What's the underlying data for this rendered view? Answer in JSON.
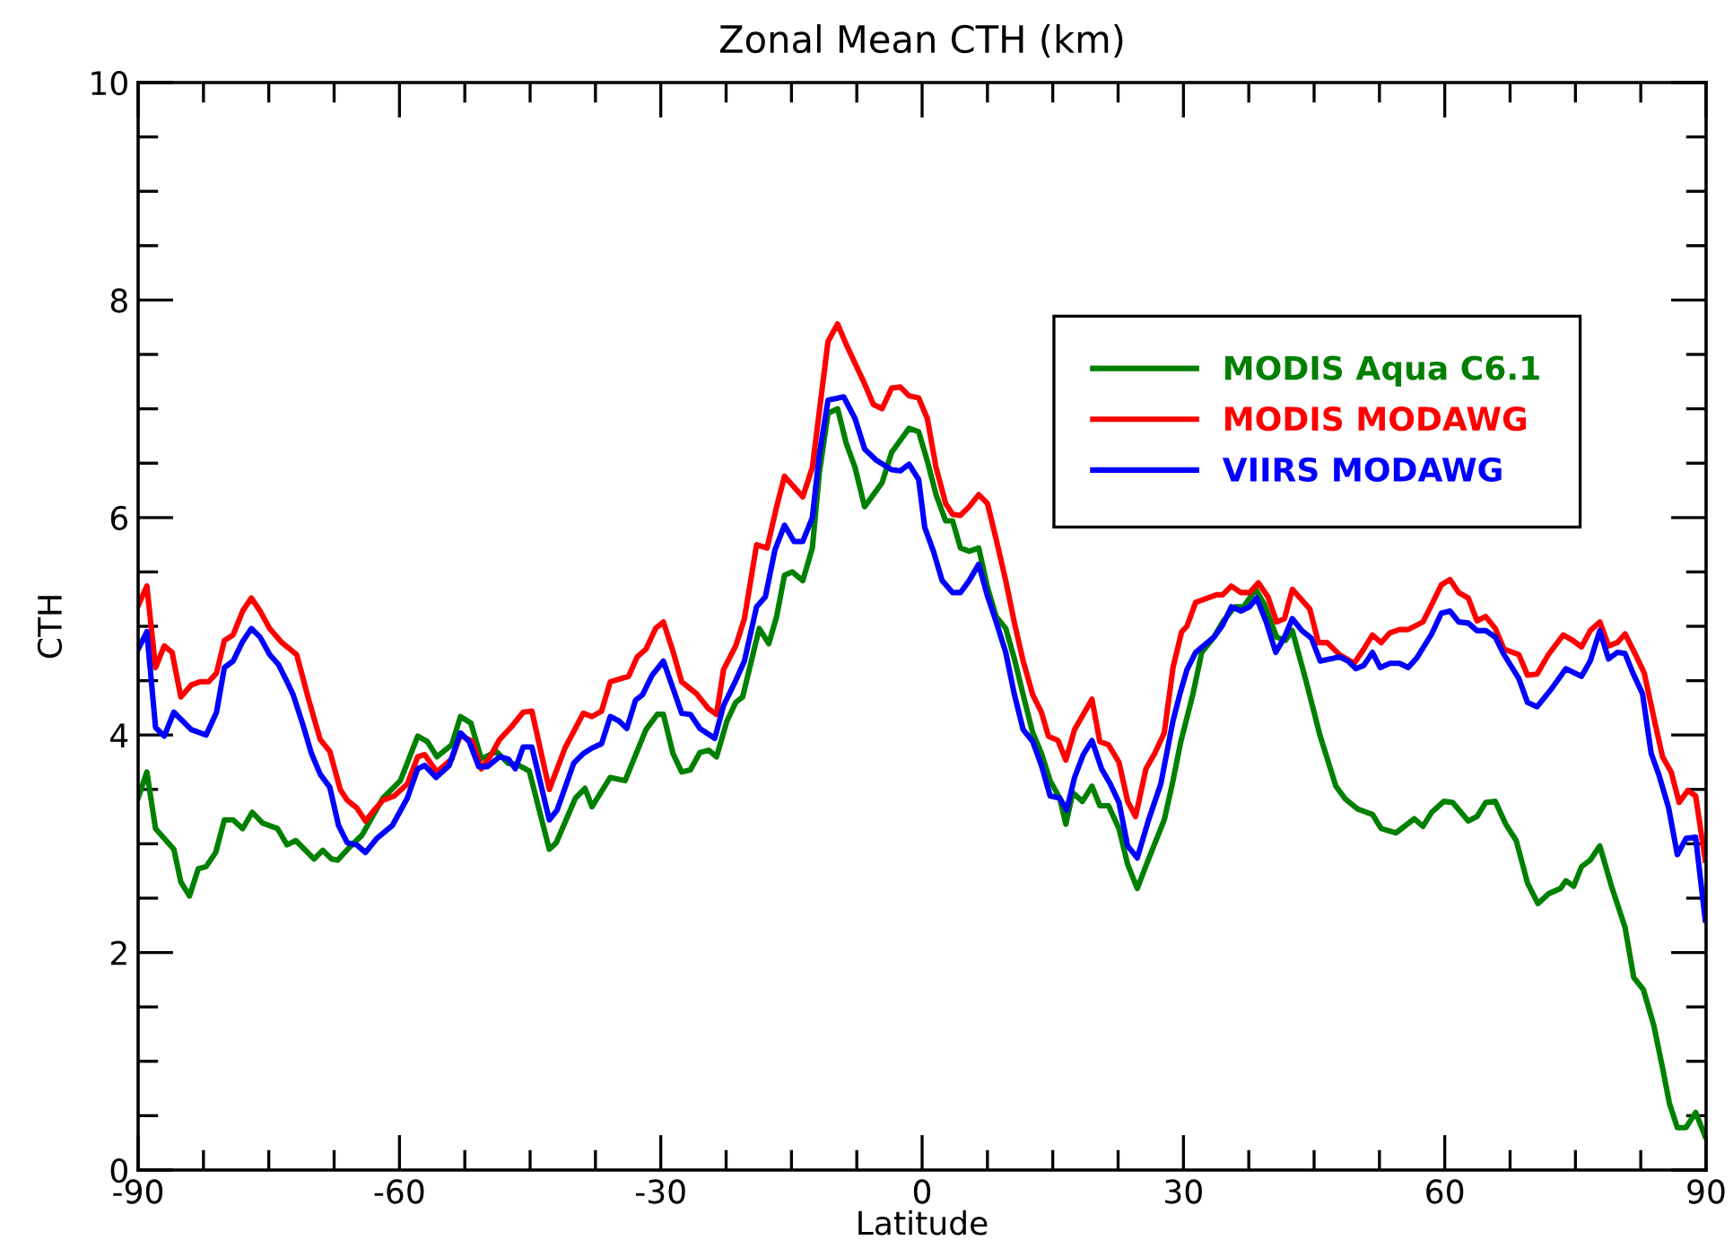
{
  "chart_data": {
    "type": "line",
    "title": "Zonal Mean CTH (km)",
    "xlabel": "Latitude",
    "ylabel": "CTH",
    "xlim": [
      -90,
      90
    ],
    "ylim": [
      0,
      10
    ],
    "xticks": [
      -90,
      -60,
      -30,
      0,
      30,
      60,
      90
    ],
    "yticks": [
      0,
      2,
      4,
      6,
      8,
      10
    ],
    "grid": false,
    "legend": "top right",
    "line_style": "solid",
    "marker": "none",
    "series": [
      {
        "name": "MODIS Aqua C6.1",
        "color": "#008000",
        "x": [
          -90.0,
          -89.0,
          -88.0,
          -85.9,
          -85.1,
          -84.1,
          -83.1,
          -82.2,
          -81.1,
          -80.1,
          -79.1,
          -78.0,
          -76.9,
          -75.7,
          -74.0,
          -72.9,
          -71.9,
          -69.8,
          -68.8,
          -67.8,
          -67.1,
          -65.7,
          -64.3,
          -61.9,
          -59.9,
          -57.9,
          -56.8,
          -55.7,
          -54.0,
          -53.0,
          -51.8,
          -50.6,
          -48.9,
          -47.5,
          -46.5,
          -45.1,
          -42.8,
          -42.0,
          -39.8,
          -38.7,
          -37.9,
          -35.8,
          -34.1,
          -31.7,
          -30.4,
          -29.7,
          -28.6,
          -27.6,
          -26.6,
          -25.5,
          -24.5,
          -23.6,
          -22.4,
          -21.4,
          -20.6,
          -19.7,
          -18.7,
          -17.6,
          -16.7,
          -15.8,
          -14.9,
          -13.7,
          -12.6,
          -11.8,
          -10.8,
          -9.7,
          -8.7,
          -7.7,
          -6.6,
          -5.6,
          -4.6,
          -3.5,
          -2.5,
          -1.5,
          -0.4,
          0.6,
          1.6,
          2.7,
          3.5,
          4.4,
          5.4,
          6.5,
          7.5,
          8.5,
          9.6,
          10.6,
          11.6,
          12.7,
          13.7,
          14.7,
          15.8,
          16.5,
          17.3,
          18.4,
          19.5,
          20.4,
          21.4,
          22.6,
          23.6,
          24.7,
          26.0,
          27.8,
          28.8,
          29.7,
          31.1,
          32.1,
          33.5,
          34.5,
          35.9,
          36.9,
          38.3,
          39.3,
          40.7,
          41.7,
          42.5,
          44.1,
          45.7,
          47.5,
          48.6,
          50.0,
          51.7,
          52.7,
          54.4,
          56.5,
          57.5,
          58.5,
          59.9,
          60.9,
          62.7,
          63.7,
          64.7,
          65.8,
          67.0,
          68.2,
          69.5,
          70.7,
          71.9,
          73.3,
          73.9,
          74.8,
          75.7,
          76.7,
          77.8,
          79.1,
          80.7,
          81.7,
          82.8,
          84.0,
          85.0,
          85.8,
          86.7,
          87.7,
          88.8,
          89.9
        ],
        "values": [
          3.42,
          3.66,
          3.14,
          2.95,
          2.65,
          2.52,
          2.77,
          2.79,
          2.92,
          3.22,
          3.22,
          3.14,
          3.29,
          3.19,
          3.14,
          2.99,
          3.03,
          2.86,
          2.94,
          2.86,
          2.85,
          2.97,
          3.08,
          3.42,
          3.58,
          3.99,
          3.94,
          3.8,
          3.91,
          4.17,
          4.11,
          3.78,
          3.85,
          3.74,
          3.73,
          3.67,
          2.95,
          3.01,
          3.42,
          3.51,
          3.34,
          3.61,
          3.58,
          4.05,
          4.19,
          4.19,
          3.83,
          3.66,
          3.68,
          3.84,
          3.86,
          3.8,
          4.13,
          4.3,
          4.35,
          4.65,
          4.98,
          4.84,
          5.09,
          5.47,
          5.5,
          5.42,
          5.72,
          6.41,
          6.96,
          7.0,
          6.68,
          6.46,
          6.1,
          6.21,
          6.32,
          6.6,
          6.71,
          6.82,
          6.79,
          6.52,
          6.21,
          5.97,
          5.97,
          5.72,
          5.69,
          5.72,
          5.36,
          5.09,
          4.98,
          4.7,
          4.37,
          4.02,
          3.83,
          3.58,
          3.42,
          3.18,
          3.47,
          3.39,
          3.53,
          3.35,
          3.35,
          3.14,
          2.81,
          2.59,
          2.86,
          3.22,
          3.58,
          3.94,
          4.38,
          4.76,
          4.9,
          5.04,
          5.18,
          5.18,
          5.34,
          5.2,
          4.9,
          4.87,
          4.96,
          4.49,
          3.99,
          3.53,
          3.41,
          3.32,
          3.27,
          3.14,
          3.1,
          3.23,
          3.16,
          3.29,
          3.39,
          3.38,
          3.21,
          3.25,
          3.38,
          3.39,
          3.18,
          3.03,
          2.64,
          2.45,
          2.54,
          2.59,
          2.66,
          2.61,
          2.79,
          2.85,
          2.98,
          2.62,
          2.23,
          1.77,
          1.66,
          1.33,
          0.94,
          0.61,
          0.39,
          0.39,
          0.53,
          0.31
        ]
      },
      {
        "name": "MODIS MODAWG",
        "color": "#ff0000",
        "x": [
          -90.0,
          -89.0,
          -88.0,
          -87.0,
          -86.1,
          -85.1,
          -83.9,
          -82.9,
          -81.9,
          -81.0,
          -80.1,
          -79.1,
          -78.0,
          -77.0,
          -76.0,
          -74.9,
          -73.5,
          -71.8,
          -70.4,
          -69.1,
          -68.0,
          -66.8,
          -66.0,
          -64.9,
          -63.9,
          -62.9,
          -61.9,
          -60.6,
          -59.1,
          -57.9,
          -57.1,
          -55.7,
          -54.0,
          -53.0,
          -51.6,
          -50.6,
          -49.6,
          -48.5,
          -47.2,
          -45.8,
          -44.8,
          -42.8,
          -41.0,
          -38.9,
          -37.9,
          -36.8,
          -35.8,
          -33.7,
          -32.7,
          -31.7,
          -30.6,
          -29.7,
          -28.6,
          -27.6,
          -25.9,
          -24.5,
          -23.6,
          -22.8,
          -21.4,
          -20.4,
          -19.0,
          -17.8,
          -16.7,
          -15.8,
          -13.7,
          -12.6,
          -10.8,
          -9.7,
          -8.7,
          -6.6,
          -5.6,
          -4.6,
          -3.5,
          -2.5,
          -1.5,
          -0.4,
          0.6,
          1.6,
          2.7,
          3.5,
          4.4,
          5.4,
          6.5,
          7.5,
          8.5,
          9.6,
          10.6,
          11.6,
          12.7,
          13.7,
          14.5,
          15.6,
          16.5,
          17.5,
          18.5,
          19.5,
          20.4,
          21.4,
          22.6,
          23.6,
          24.5,
          25.7,
          26.7,
          27.8,
          28.8,
          29.8,
          30.4,
          31.4,
          32.8,
          33.8,
          34.5,
          35.5,
          36.6,
          37.6,
          38.6,
          39.7,
          40.7,
          41.6,
          42.5,
          44.5,
          45.5,
          46.5,
          47.9,
          49.6,
          50.7,
          51.7,
          52.7,
          53.7,
          54.8,
          55.8,
          57.5,
          58.5,
          59.6,
          60.6,
          61.6,
          62.7,
          63.7,
          64.7,
          65.8,
          66.8,
          68.5,
          69.5,
          70.6,
          71.9,
          73.6,
          74.7,
          75.7,
          76.7,
          77.8,
          78.8,
          79.8,
          80.7,
          81.9,
          82.9,
          84.0,
          85.0,
          86.0,
          86.9,
          87.9,
          88.8,
          89.9
        ],
        "values": [
          5.19,
          5.37,
          4.62,
          4.82,
          4.76,
          4.35,
          4.46,
          4.49,
          4.49,
          4.57,
          4.87,
          4.92,
          5.14,
          5.26,
          5.14,
          4.98,
          4.85,
          4.74,
          4.32,
          3.96,
          3.85,
          3.5,
          3.4,
          3.33,
          3.21,
          3.31,
          3.4,
          3.44,
          3.55,
          3.8,
          3.82,
          3.66,
          3.78,
          4.0,
          3.94,
          3.69,
          3.8,
          3.96,
          4.07,
          4.21,
          4.22,
          3.5,
          3.88,
          4.2,
          4.17,
          4.22,
          4.49,
          4.54,
          4.72,
          4.79,
          4.98,
          5.04,
          4.77,
          4.49,
          4.38,
          4.24,
          4.19,
          4.6,
          4.82,
          5.07,
          5.75,
          5.72,
          6.1,
          6.38,
          6.19,
          6.46,
          7.62,
          7.78,
          7.59,
          7.23,
          7.04,
          7.0,
          7.19,
          7.2,
          7.12,
          7.1,
          6.91,
          6.46,
          6.13,
          6.03,
          6.02,
          6.1,
          6.21,
          6.13,
          5.8,
          5.42,
          5.03,
          4.68,
          4.37,
          4.21,
          3.99,
          3.95,
          3.77,
          4.05,
          4.19,
          4.33,
          3.94,
          3.91,
          3.75,
          3.39,
          3.25,
          3.69,
          3.83,
          4.02,
          4.62,
          4.95,
          5.0,
          5.22,
          5.26,
          5.29,
          5.29,
          5.37,
          5.31,
          5.31,
          5.4,
          5.27,
          5.04,
          5.07,
          5.34,
          5.16,
          4.85,
          4.85,
          4.74,
          4.66,
          4.79,
          4.92,
          4.85,
          4.94,
          4.97,
          4.97,
          5.04,
          5.2,
          5.38,
          5.43,
          5.31,
          5.26,
          5.05,
          5.09,
          4.98,
          4.79,
          4.74,
          4.55,
          4.56,
          4.74,
          4.92,
          4.87,
          4.81,
          4.96,
          5.04,
          4.82,
          4.85,
          4.93,
          4.74,
          4.57,
          4.16,
          3.8,
          3.66,
          3.38,
          3.49,
          3.44,
          2.85
        ]
      },
      {
        "name": "VIIRS MODAWG",
        "color": "#0000ff",
        "x": [
          -90.0,
          -89.0,
          -88.0,
          -87.0,
          -85.9,
          -83.9,
          -82.2,
          -81.0,
          -80.1,
          -79.1,
          -78.0,
          -77.0,
          -76.0,
          -74.9,
          -73.9,
          -72.9,
          -72.2,
          -71.1,
          -70.1,
          -69.1,
          -68.0,
          -67.0,
          -66.0,
          -64.9,
          -63.9,
          -62.6,
          -60.8,
          -59.1,
          -57.9,
          -57.1,
          -55.8,
          -54.3,
          -53.0,
          -52.0,
          -50.9,
          -49.9,
          -48.5,
          -47.5,
          -46.7,
          -45.8,
          -44.8,
          -42.8,
          -41.9,
          -40.0,
          -38.9,
          -37.9,
          -36.8,
          -35.8,
          -34.8,
          -33.9,
          -32.9,
          -32.1,
          -31.0,
          -29.7,
          -28.6,
          -27.6,
          -26.6,
          -25.5,
          -23.8,
          -22.8,
          -21.4,
          -20.4,
          -19.0,
          -18.0,
          -16.9,
          -15.8,
          -14.7,
          -13.7,
          -12.6,
          -11.8,
          -10.8,
          -9.0,
          -7.7,
          -6.6,
          -5.3,
          -3.5,
          -2.5,
          -1.5,
          -0.4,
          0.3,
          1.3,
          2.3,
          3.5,
          4.4,
          5.4,
          6.5,
          7.5,
          8.5,
          9.6,
          10.6,
          11.6,
          12.7,
          13.7,
          14.7,
          15.8,
          16.6,
          17.5,
          18.5,
          19.5,
          20.6,
          21.6,
          22.6,
          23.6,
          24.7,
          26.0,
          27.4,
          28.8,
          29.6,
          30.4,
          31.4,
          33.5,
          34.5,
          35.5,
          36.6,
          37.6,
          38.4,
          39.5,
          40.6,
          41.6,
          42.5,
          43.6,
          44.7,
          45.7,
          46.9,
          47.9,
          48.9,
          49.8,
          50.7,
          51.7,
          52.6,
          53.7,
          54.8,
          55.8,
          56.8,
          58.5,
          59.6,
          60.6,
          61.6,
          62.7,
          63.7,
          64.7,
          65.8,
          66.8,
          68.5,
          69.5,
          70.6,
          72.3,
          73.9,
          75.7,
          76.7,
          77.8,
          78.8,
          79.8,
          80.7,
          81.6,
          82.7,
          83.7,
          84.6,
          85.7,
          86.7,
          87.7,
          88.8,
          89.9
        ],
        "values": [
          4.79,
          4.95,
          4.07,
          3.99,
          4.21,
          4.05,
          4.0,
          4.21,
          4.62,
          4.68,
          4.86,
          4.98,
          4.9,
          4.74,
          4.65,
          4.49,
          4.37,
          4.1,
          3.83,
          3.64,
          3.52,
          3.17,
          3.01,
          2.99,
          2.92,
          3.05,
          3.17,
          3.42,
          3.69,
          3.72,
          3.61,
          3.72,
          4.02,
          3.94,
          3.71,
          3.71,
          3.8,
          3.78,
          3.69,
          3.89,
          3.89,
          3.22,
          3.31,
          3.74,
          3.83,
          3.88,
          3.92,
          4.17,
          4.13,
          4.06,
          4.32,
          4.37,
          4.55,
          4.68,
          4.43,
          4.2,
          4.19,
          4.06,
          3.97,
          4.27,
          4.5,
          4.68,
          5.18,
          5.27,
          5.7,
          5.93,
          5.78,
          5.78,
          6.0,
          6.58,
          7.08,
          7.11,
          6.91,
          6.63,
          6.53,
          6.44,
          6.43,
          6.49,
          6.35,
          5.91,
          5.69,
          5.42,
          5.31,
          5.31,
          5.42,
          5.57,
          5.28,
          5.04,
          4.76,
          4.37,
          4.05,
          3.94,
          3.72,
          3.44,
          3.42,
          3.31,
          3.61,
          3.82,
          3.95,
          3.69,
          3.55,
          3.38,
          2.98,
          2.87,
          3.22,
          3.55,
          4.13,
          4.38,
          4.6,
          4.76,
          4.9,
          5.01,
          5.18,
          5.14,
          5.18,
          5.26,
          5.04,
          4.76,
          4.9,
          5.07,
          4.96,
          4.89,
          4.68,
          4.7,
          4.72,
          4.68,
          4.61,
          4.64,
          4.76,
          4.62,
          4.66,
          4.66,
          4.62,
          4.71,
          4.93,
          5.12,
          5.14,
          5.04,
          5.03,
          4.96,
          4.96,
          4.9,
          4.74,
          4.52,
          4.3,
          4.26,
          4.43,
          4.61,
          4.54,
          4.68,
          4.96,
          4.7,
          4.76,
          4.75,
          4.57,
          4.38,
          3.83,
          3.63,
          3.33,
          2.9,
          3.05,
          3.06,
          2.3
        ]
      }
    ]
  }
}
